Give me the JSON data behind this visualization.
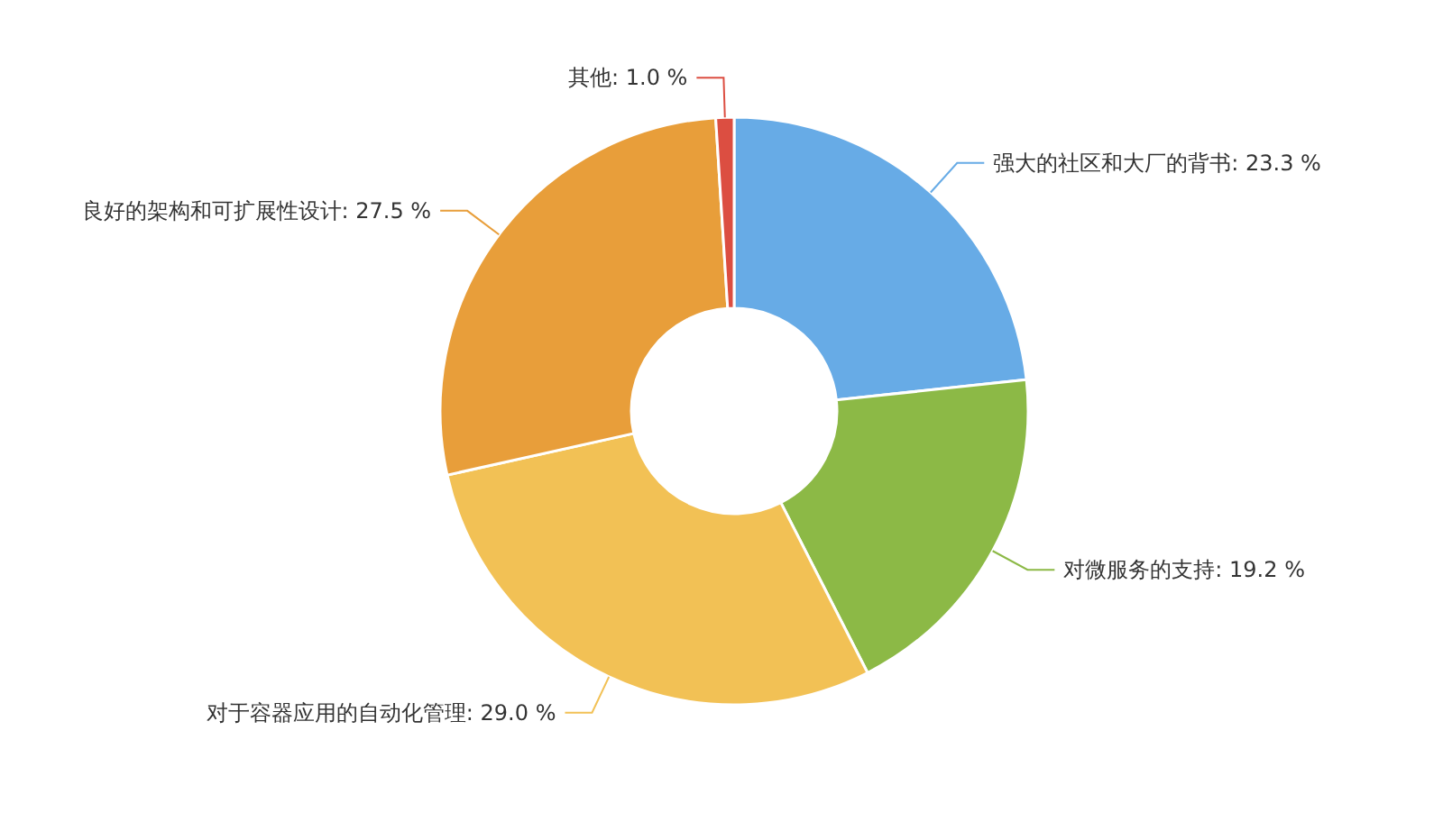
{
  "chart_data": {
    "type": "donut",
    "categories": [
      "强大的社区和大厂的背书",
      "对微服务的支持",
      "对于容器应用的自动化管理",
      "良好的架构和可扩展性设计",
      "其他"
    ],
    "values": [
      23.3,
      19.2,
      29.0,
      27.5,
      1.0
    ],
    "value_labels": [
      "23.3 %",
      "19.2 %",
      "29.0 %",
      "27.5 %",
      "1.0 %"
    ],
    "colors": [
      "#67abe6",
      "#8cb946",
      "#f2c155",
      "#e89e3a",
      "#dc4e41"
    ],
    "legend": false
  }
}
